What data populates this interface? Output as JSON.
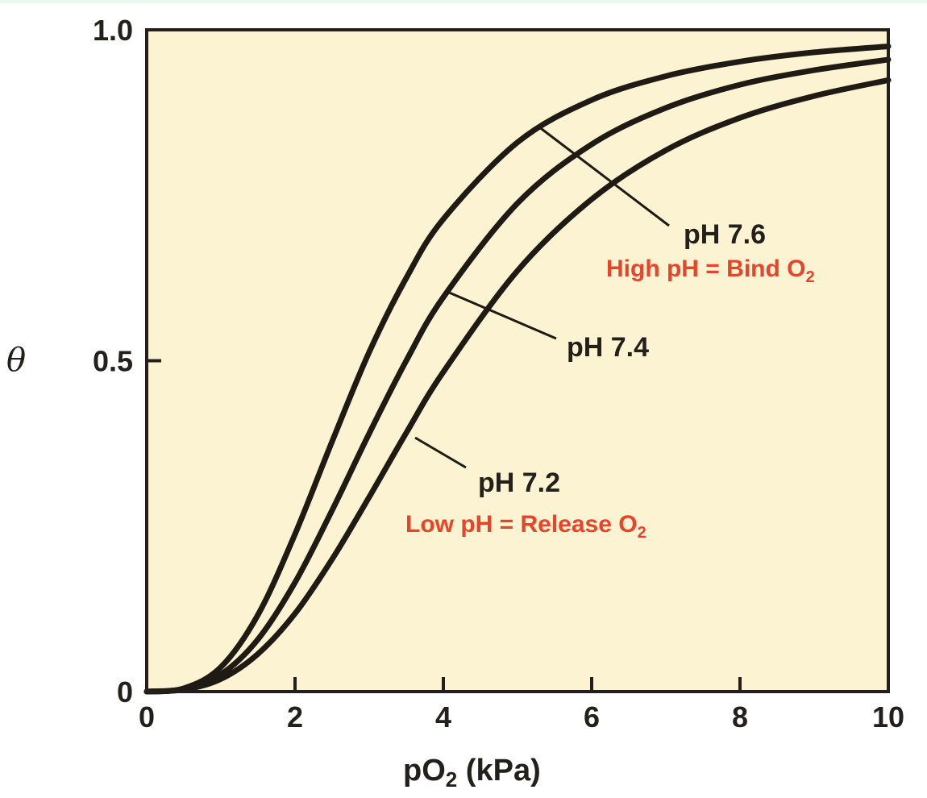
{
  "chart_data": {
    "type": "line",
    "xlabel": "pO",
    "xlabel_sub": "2",
    "xlabel_unit": " (kPa)",
    "ylabel": "θ",
    "xlim": [
      0,
      10
    ],
    "ylim": [
      0,
      1.0
    ],
    "x_ticks": [
      "0",
      "2",
      "4",
      "6",
      "8",
      "10"
    ],
    "x_tick_values": [
      0,
      2,
      4,
      6,
      8,
      10
    ],
    "y_ticks": [
      "0",
      "0.5",
      "1.0"
    ],
    "y_tick_values": [
      0,
      0.5,
      1.0
    ],
    "grid": false,
    "background_color": "#fcf3d2",
    "line_color": "#1f1a14",
    "annotation_color": "#e8442a",
    "x": [
      0,
      0.5,
      1,
      1.5,
      2,
      2.5,
      3,
      3.5,
      4,
      5,
      6,
      7,
      8,
      9,
      10
    ],
    "series": [
      {
        "name": "pH 7.6",
        "values": [
          0,
          0.005,
          0.037,
          0.116,
          0.238,
          0.378,
          0.513,
          0.625,
          0.714,
          0.83,
          0.894,
          0.93,
          0.952,
          0.966,
          0.975
        ]
      },
      {
        "name": "pH 7.4",
        "values": [
          0,
          0.004,
          0.026,
          0.079,
          0.165,
          0.274,
          0.39,
          0.5,
          0.596,
          0.738,
          0.827,
          0.882,
          0.917,
          0.939,
          0.955
        ]
      },
      {
        "name": "pH 7.2",
        "values": [
          0,
          0.003,
          0.019,
          0.057,
          0.118,
          0.2,
          0.294,
          0.391,
          0.483,
          0.636,
          0.744,
          0.818,
          0.867,
          0.9,
          0.924
        ]
      }
    ],
    "annotations": {
      "high": {
        "text": "High pH = Bind O",
        "sub": "2"
      },
      "low": {
        "text": "Low pH = Release O",
        "sub": "2"
      }
    }
  }
}
